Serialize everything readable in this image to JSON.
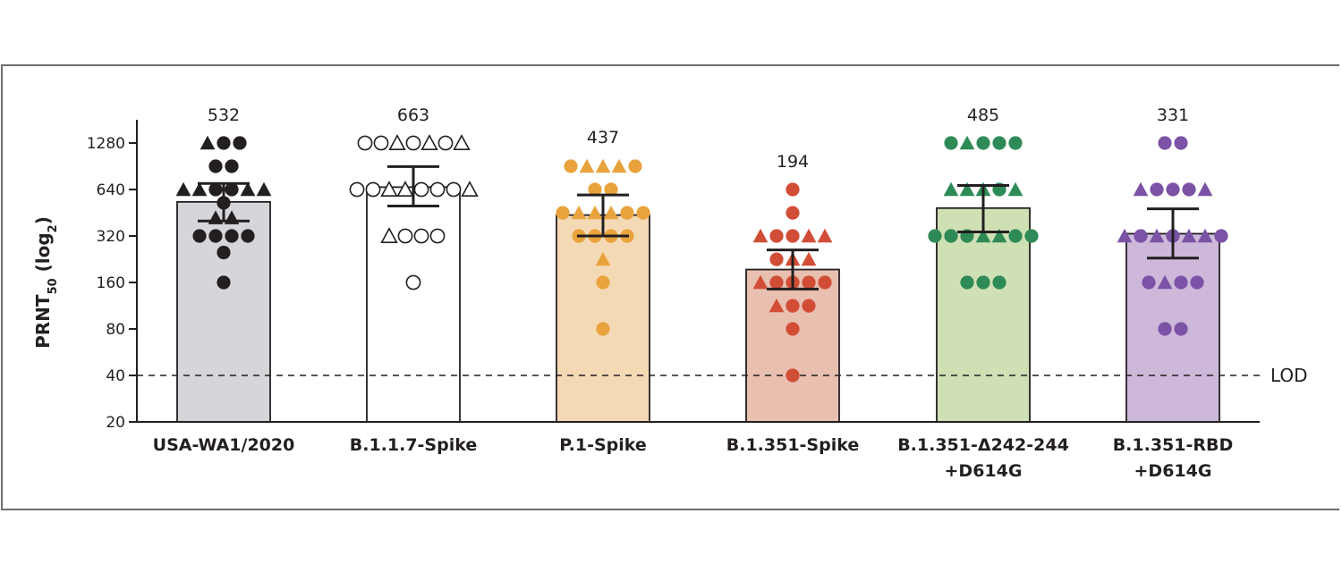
{
  "chart_data": {
    "type": "bar",
    "title": "",
    "xlabel": "",
    "ylabel": "PRNT",
    "ylabel_sub": "50",
    "ylabel_suffix": " (log",
    "ylabel_suffix_sub": "2",
    "ylabel_close": ")",
    "yscale": "log2",
    "ylim": [
      20,
      1280
    ],
    "yticks": [
      20,
      40,
      80,
      160,
      320,
      640,
      1280
    ],
    "ytick_labels": [
      "20",
      "40",
      "80",
      "160",
      "320",
      "640",
      "1280"
    ],
    "reference_line": {
      "value": 40,
      "label": "LOD",
      "style": "dashed"
    },
    "categories": [
      {
        "line1": "USA-WA1/2020",
        "line2": ""
      },
      {
        "line1": "B.1.1.7-Spike",
        "line2": ""
      },
      {
        "line1": "P.1-Spike",
        "line2": ""
      },
      {
        "line1": "B.1.351-Spike",
        "line2": ""
      },
      {
        "line1": "B.1.351-Δ242-244",
        "line2": "+D614G"
      },
      {
        "line1": "B.1.351-RBD",
        "line2": "+D614G"
      }
    ],
    "series": [
      {
        "name": "USA-WA1/2020",
        "value": 532,
        "value_label": "532",
        "error": [
          400,
          700
        ],
        "bar_color": "#d5d6da",
        "point_color": "#231f20",
        "point_fill": "filled",
        "points": [
          {
            "v": 1280,
            "shapes": [
              "tri",
              "circ",
              "circ"
            ]
          },
          {
            "v": 905,
            "shapes": [
              "circ",
              "circ"
            ]
          },
          {
            "v": 640,
            "shapes": [
              "tri",
              "tri",
              "circ",
              "circ",
              "tri",
              "tri"
            ]
          },
          {
            "v": 525,
            "shapes": [
              "circ"
            ]
          },
          {
            "v": 420,
            "shapes": [
              "tri",
              "tri"
            ]
          },
          {
            "v": 320,
            "shapes": [
              "circ",
              "circ",
              "circ",
              "circ"
            ]
          },
          {
            "v": 250,
            "shapes": [
              "circ"
            ]
          },
          {
            "v": 160,
            "shapes": [
              "circ"
            ]
          }
        ]
      },
      {
        "name": "B.1.1.7-Spike",
        "value": 663,
        "value_label": "663",
        "error": [
          500,
          900
        ],
        "bar_color": "#ffffff",
        "point_color": "#231f20",
        "point_fill": "open",
        "points": [
          {
            "v": 1280,
            "shapes": [
              "circ",
              "circ",
              "tri",
              "circ",
              "tri",
              "circ",
              "tri"
            ]
          },
          {
            "v": 640,
            "shapes": [
              "circ",
              "circ",
              "tri",
              "tri",
              "circ",
              "circ",
              "circ",
              "tri"
            ]
          },
          {
            "v": 320,
            "shapes": [
              "tri",
              "circ",
              "circ",
              "circ"
            ]
          },
          {
            "v": 160,
            "shapes": [
              "circ"
            ]
          }
        ]
      },
      {
        "name": "P.1-Spike",
        "value": 437,
        "value_label": "437",
        "error": [
          320,
          590
        ],
        "bar_color": "#f4d9b5",
        "point_color": "#e8a33d",
        "point_fill": "filled",
        "points": [
          {
            "v": 905,
            "shapes": [
              "circ",
              "tri",
              "tri",
              "tri",
              "circ"
            ]
          },
          {
            "v": 640,
            "shapes": [
              "circ",
              "circ"
            ]
          },
          {
            "v": 452,
            "shapes": [
              "circ",
              "tri",
              "tri",
              "tri",
              "circ",
              "circ"
            ]
          },
          {
            "v": 320,
            "shapes": [
              "circ",
              "circ",
              "circ",
              "circ"
            ]
          },
          {
            "v": 226,
            "shapes": [
              "tri"
            ]
          },
          {
            "v": 160,
            "shapes": [
              "circ"
            ]
          },
          {
            "v": 80,
            "shapes": [
              "circ"
            ]
          }
        ]
      },
      {
        "name": "B.1.351-Spike",
        "value": 194,
        "value_label": "194",
        "error": [
          145,
          260
        ],
        "bar_color": "#e9bfb0",
        "point_color": "#d14d36",
        "point_fill": "filled",
        "points": [
          {
            "v": 640,
            "shapes": [
              "circ"
            ]
          },
          {
            "v": 452,
            "shapes": [
              "circ"
            ]
          },
          {
            "v": 320,
            "shapes": [
              "tri",
              "circ",
              "circ",
              "tri",
              "tri"
            ]
          },
          {
            "v": 226,
            "shapes": [
              "circ",
              "tri",
              "tri"
            ]
          },
          {
            "v": 160,
            "shapes": [
              "tri",
              "circ",
              "circ",
              "circ",
              "circ"
            ]
          },
          {
            "v": 113,
            "shapes": [
              "tri",
              "circ",
              "circ"
            ]
          },
          {
            "v": 80,
            "shapes": [
              "circ"
            ]
          },
          {
            "v": 40,
            "shapes": [
              "circ"
            ]
          }
        ]
      },
      {
        "name": "B.1.351-Δ242-244+D614G",
        "value": 485,
        "value_label": "485",
        "error": [
          340,
          680
        ],
        "bar_color": "#cfe0b4",
        "point_color": "#2e8b57",
        "point_fill": "filled",
        "points": [
          {
            "v": 1280,
            "shapes": [
              "circ",
              "tri",
              "circ",
              "circ",
              "circ"
            ]
          },
          {
            "v": 640,
            "shapes": [
              "tri",
              "tri",
              "tri",
              "circ",
              "tri"
            ]
          },
          {
            "v": 320,
            "shapes": [
              "circ",
              "circ",
              "circ",
              "tri",
              "tri",
              "circ",
              "circ"
            ]
          },
          {
            "v": 160,
            "shapes": [
              "circ",
              "circ",
              "circ"
            ]
          }
        ]
      },
      {
        "name": "B.1.351-RBD+D614G",
        "value": 331,
        "value_label": "331",
        "error": [
          230,
          480
        ],
        "bar_color": "#cdb8da",
        "point_color": "#7b52a6",
        "point_fill": "filled",
        "points": [
          {
            "v": 1280,
            "shapes": [
              "circ",
              "circ"
            ]
          },
          {
            "v": 640,
            "shapes": [
              "tri",
              "circ",
              "circ",
              "circ",
              "tri"
            ]
          },
          {
            "v": 320,
            "shapes": [
              "tri",
              "circ",
              "tri",
              "circ",
              "tri",
              "tri",
              "circ"
            ]
          },
          {
            "v": 160,
            "shapes": [
              "circ",
              "tri",
              "circ",
              "circ"
            ]
          },
          {
            "v": 80,
            "shapes": [
              "circ",
              "circ"
            ]
          }
        ]
      }
    ]
  }
}
